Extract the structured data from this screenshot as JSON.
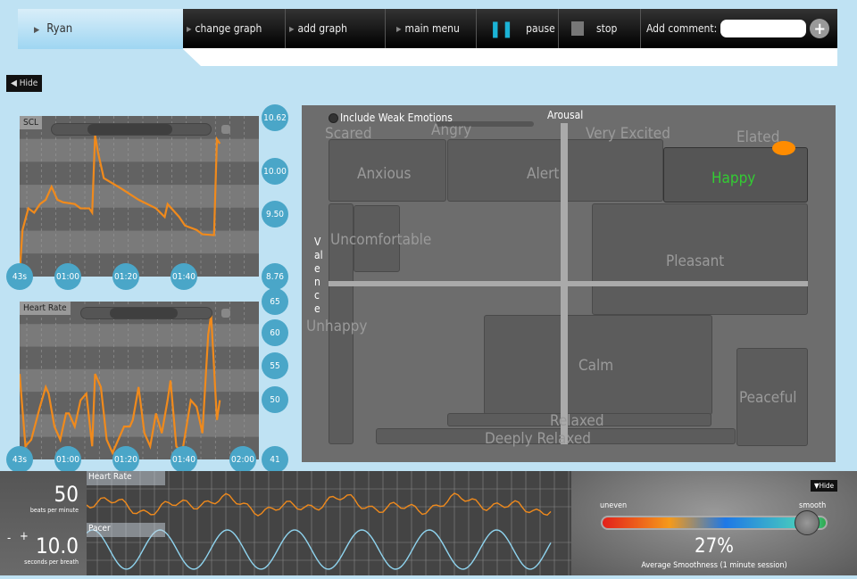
{
  "header": {
    "user": "Ryan",
    "buttons": [
      "change graph",
      "add graph",
      "main menu",
      "pause",
      "stop"
    ],
    "comment_label": "Add comment:",
    "comment_value": "",
    "add_icon": "plus-icon"
  },
  "hide_label": "Hide",
  "scl_chart": {
    "title": "SCL",
    "x_ticks": [
      "43s",
      "01:00",
      "01:20",
      "01:40"
    ],
    "y_ticks": [
      "10.62",
      "10.00",
      "9.50",
      "8.76"
    ],
    "ylim": [
      8.76,
      10.62
    ],
    "series": [
      [
        43,
        8.8
      ],
      [
        44,
        9.3
      ],
      [
        46,
        9.55
      ],
      [
        48,
        9.5
      ],
      [
        50,
        9.6
      ],
      [
        52,
        9.65
      ],
      [
        54,
        9.8
      ],
      [
        56,
        9.65
      ],
      [
        58,
        9.62
      ],
      [
        62,
        9.6
      ],
      [
        64,
        9.55
      ],
      [
        67,
        9.55
      ],
      [
        68,
        9.5
      ],
      [
        69,
        10.4
      ],
      [
        70,
        10.2
      ],
      [
        72,
        9.9
      ],
      [
        78,
        9.78
      ],
      [
        84,
        9.65
      ],
      [
        90,
        9.55
      ],
      [
        93,
        9.45
      ],
      [
        94,
        9.6
      ],
      [
        98,
        9.45
      ],
      [
        100,
        9.35
      ],
      [
        104,
        9.3
      ],
      [
        106,
        9.25
      ],
      [
        110,
        9.24
      ],
      [
        111,
        10.35
      ],
      [
        112,
        10.3
      ]
    ]
  },
  "hr_chart": {
    "title": "Heart Rate",
    "x_ticks": [
      "43s",
      "01:00",
      "01:20",
      "01:40",
      "02:00"
    ],
    "y_ticks": [
      "65",
      "60",
      "55",
      "50",
      "41"
    ],
    "ylim": [
      41,
      65
    ],
    "series": [
      [
        43,
        54
      ],
      [
        45,
        43
      ],
      [
        47,
        44
      ],
      [
        50,
        49
      ],
      [
        52,
        52
      ],
      [
        53,
        51
      ],
      [
        55,
        46
      ],
      [
        57,
        44
      ],
      [
        59,
        48
      ],
      [
        60,
        48
      ],
      [
        62,
        46
      ],
      [
        64,
        50
      ],
      [
        66,
        51
      ],
      [
        68,
        43
      ],
      [
        69,
        54
      ],
      [
        71,
        52
      ],
      [
        73,
        44
      ],
      [
        75,
        42
      ],
      [
        77,
        44
      ],
      [
        79,
        46
      ],
      [
        81,
        46
      ],
      [
        82,
        47
      ],
      [
        84,
        52
      ],
      [
        86,
        45
      ],
      [
        88,
        43
      ],
      [
        90,
        48
      ],
      [
        92,
        45
      ],
      [
        94,
        50
      ],
      [
        95,
        53
      ],
      [
        97,
        43
      ],
      [
        99,
        42
      ],
      [
        102,
        50
      ],
      [
        104,
        49
      ],
      [
        106,
        45
      ],
      [
        108,
        60
      ],
      [
        109,
        63
      ],
      [
        111,
        47
      ],
      [
        112,
        50
      ]
    ]
  },
  "emotion_map": {
    "checkbox_label": "Include Weak Emotions",
    "checked": false,
    "x_axis": "Arousal",
    "y_axis": "Valence",
    "labels": [
      "Scared",
      "Angry",
      "Very Excited",
      "Elated",
      "Anxious",
      "Alert",
      "Happy",
      "Uncomfortable",
      "Pleasant",
      "Unhappy",
      "Calm",
      "Peaceful",
      "Relaxed",
      "Deeply Relaxed"
    ],
    "selected": "Happy",
    "highlight_color": "#33cc33",
    "marker_color": "#ff8c00"
  },
  "bottom": {
    "hr_value": "50",
    "hr_unit": "beats per minute",
    "hr_strip_title": "Heart Rate",
    "pacer_minus": "-",
    "pacer_plus": "+",
    "pacer_value": "10.0",
    "pacer_unit": "seconds per breath",
    "pacer_strip_title": "Pacer",
    "hide_label": "Hide",
    "uneven_label": "uneven",
    "smooth_label": "smooth",
    "smoothness": "27%",
    "smoothness_caption": "Average Smoothness (1 minute session)"
  }
}
